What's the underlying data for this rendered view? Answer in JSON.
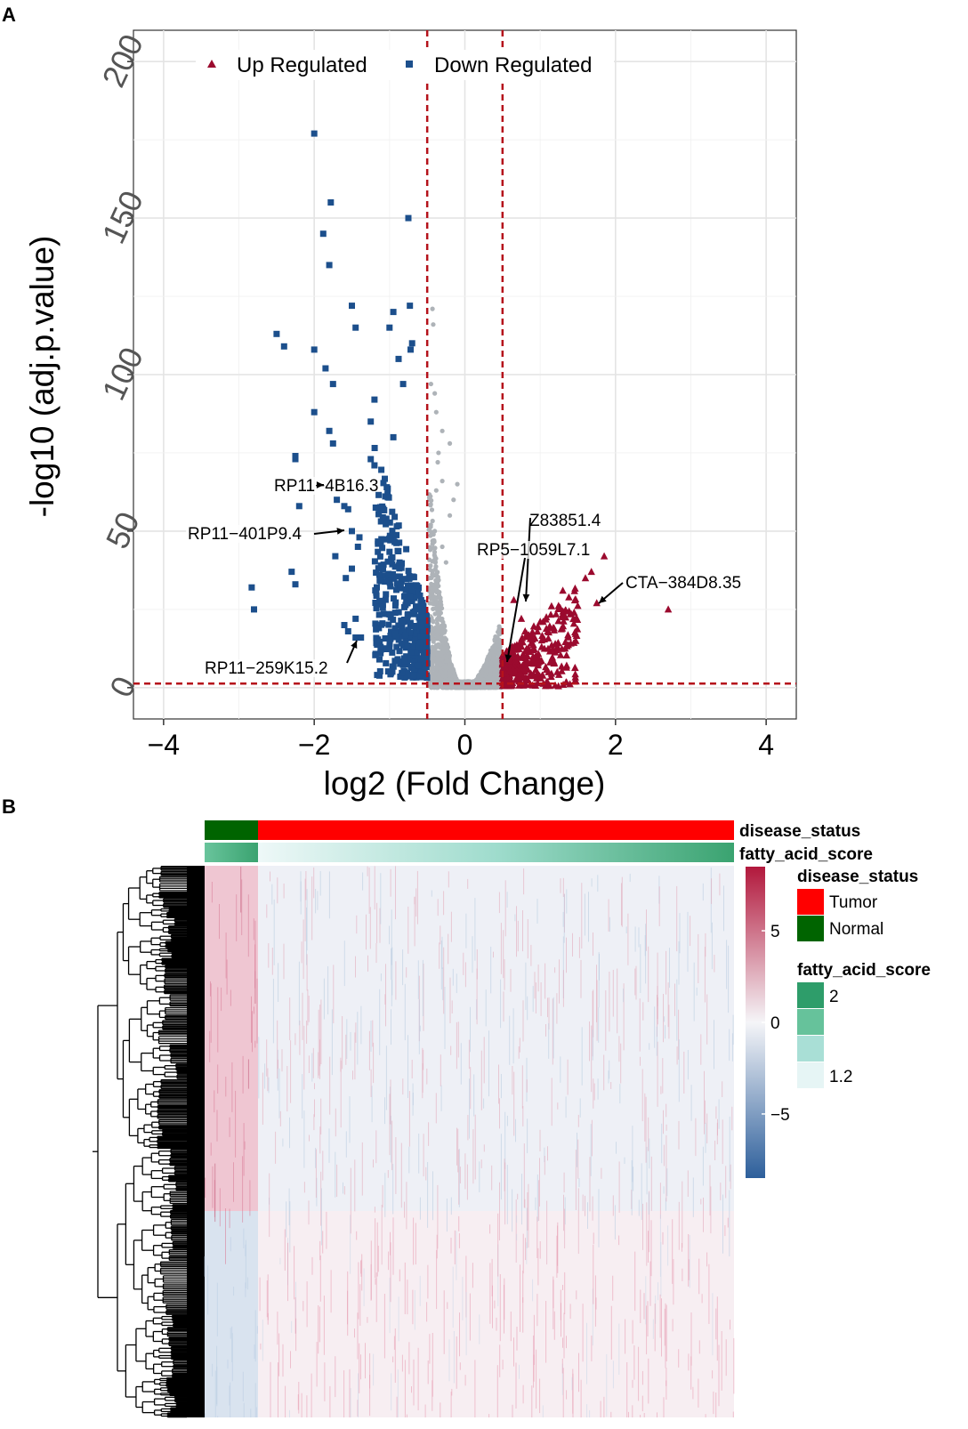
{
  "panels": {
    "a": {
      "letter": "A"
    },
    "b": {
      "letter": "B"
    }
  },
  "chart_data": [
    {
      "type": "scatter",
      "name": "volcano-plot",
      "xlabel": "log2 (Fold Change)",
      "ylabel": "-log10 (adj.p.value)",
      "xlim": [
        -4.4,
        4.4
      ],
      "ylim": [
        -10,
        210
      ],
      "xticks": [
        -4,
        -2,
        0,
        2,
        4
      ],
      "xtick_labels": [
        "−4",
        "−2",
        "0",
        "2",
        "4"
      ],
      "yticks": [
        0,
        50,
        100,
        150,
        200
      ],
      "ytick_labels": [
        "0",
        "50",
        "100",
        "150",
        "200"
      ],
      "fc_threshold": 0.5,
      "p_threshold": 1.3,
      "legend": [
        {
          "name": "Up Regulated",
          "color": "#9b0a2e",
          "marker": "triangle"
        },
        {
          "name": "Down Regulated",
          "color": "#1c4f8c",
          "marker": "square"
        }
      ],
      "colors": {
        "up": "#9b0a2e",
        "down": "#1c4f8c",
        "ns": "#aeb3b8",
        "threshold": "#b5121b"
      },
      "series": [
        {
          "name": "Down Regulated",
          "points": [
            [
              -2.0,
              177
            ],
            [
              -1.78,
              155
            ],
            [
              -1.88,
              145
            ],
            [
              -0.75,
              150
            ],
            [
              -1.8,
              135
            ],
            [
              -2.5,
              113
            ],
            [
              -2.4,
              109
            ],
            [
              -2.0,
              108
            ],
            [
              -1.5,
              122
            ],
            [
              -1.45,
              115
            ],
            [
              -0.95,
              120
            ],
            [
              -0.73,
              122
            ],
            [
              -1.0,
              115
            ],
            [
              -0.7,
              110
            ],
            [
              -0.72,
              108
            ],
            [
              -1.85,
              102
            ],
            [
              -1.75,
              97
            ],
            [
              -0.88,
              105
            ],
            [
              -0.82,
              97
            ],
            [
              -2.0,
              88
            ],
            [
              -1.2,
              92
            ],
            [
              -1.25,
              85
            ],
            [
              -1.8,
              82
            ],
            [
              -1.75,
              78
            ],
            [
              -0.95,
              80
            ],
            [
              -2.25,
              74
            ],
            [
              -2.25,
              73
            ],
            [
              -1.25,
              73
            ],
            [
              -1.2,
              71
            ],
            [
              -2.2,
              58
            ],
            [
              -2.3,
              37
            ],
            [
              -2.25,
              33
            ],
            [
              -2.83,
              32
            ],
            [
              -2.8,
              25
            ],
            [
              -1.7,
              60
            ],
            [
              -1.6,
              58
            ],
            [
              -1.55,
              57
            ],
            [
              -1.5,
              50
            ],
            [
              -1.4,
              48
            ],
            [
              -1.42,
              45
            ],
            [
              -1.72,
              42
            ],
            [
              -1.58,
              35
            ],
            [
              -1.5,
              38
            ],
            [
              -1.45,
              22
            ],
            [
              -1.6,
              20
            ],
            [
              -1.55,
              18
            ],
            [
              -1.45,
              16
            ],
            [
              -1.38,
              16
            ],
            [
              -1.12,
              11
            ],
            [
              -1.0,
              13
            ]
          ]
        },
        {
          "name": "Up Regulated",
          "points": [
            [
              1.85,
              42
            ],
            [
              1.68,
              37
            ],
            [
              1.6,
              35
            ],
            [
              2.7,
              25
            ],
            [
              1.75,
              27
            ],
            [
              1.3,
              31
            ],
            [
              1.15,
              26
            ],
            [
              1.45,
              24
            ],
            [
              1.1,
              18
            ],
            [
              1.2,
              14
            ],
            [
              0.65,
              28
            ],
            [
              0.75,
              22
            ],
            [
              0.8,
              18
            ],
            [
              0.9,
              12
            ]
          ]
        },
        {
          "name": "Not Significant",
          "points": [
            [
              -0.43,
              121
            ],
            [
              -0.42,
              116
            ],
            [
              -0.45,
              97
            ],
            [
              -0.4,
              94
            ],
            [
              -0.38,
              88
            ],
            [
              -0.3,
              82
            ],
            [
              -0.2,
              78
            ],
            [
              -0.35,
              75
            ],
            [
              -0.36,
              72
            ],
            [
              -0.3,
              66
            ],
            [
              -0.1,
              65
            ],
            [
              -0.15,
              60
            ],
            [
              -0.2,
              55
            ],
            [
              -0.38,
              63
            ],
            [
              -0.4,
              50
            ],
            [
              -0.3,
              45
            ],
            [
              -0.25,
              40
            ]
          ]
        }
      ],
      "annotations": [
        {
          "label": "RP11−4B16.3",
          "x": -1.8,
          "y": 66
        },
        {
          "label": "RP11−401P9.4",
          "x": -1.55,
          "y": 51
        },
        {
          "label": "RP11−259K15.2",
          "x": -1.45,
          "y": 17
        },
        {
          "label": "Z83851.4",
          "x": 0.88,
          "y": 27
        },
        {
          "label": "RP5−1059L7.1",
          "x": 0.58,
          "y": 8
        },
        {
          "label": "CTA−384D8.35",
          "x": 1.75,
          "y": 28
        }
      ]
    },
    {
      "type": "heatmap",
      "name": "expression-heatmap",
      "annotation_bars": [
        {
          "name": "disease_status",
          "label": "disease_status"
        },
        {
          "name": "fatty_acid_score",
          "label": "fatty_acid_score"
        }
      ],
      "groups": [
        {
          "name": "Normal",
          "color": "#006400",
          "fraction": 0.104
        },
        {
          "name": "Tumor",
          "color": "#ff0000",
          "fraction": 0.896
        }
      ],
      "colorbar": {
        "min": -8.5,
        "max": 8.5,
        "ticks": [
          5,
          0,
          -5
        ],
        "tick_labels": [
          "5",
          "0",
          "−5"
        ],
        "low_color": "#2d5f9b",
        "mid_color": "#f5f5f8",
        "high_color": "#b2183c"
      },
      "legend_disease": {
        "title": "disease_status",
        "items": [
          {
            "label": "Tumor",
            "color": "#ff0000"
          },
          {
            "label": "Normal",
            "color": "#006400"
          }
        ]
      },
      "legend_score": {
        "title": "fatty_acid_score",
        "swatches": [
          "#2e9d6a",
          "#66c29b",
          "#a9dfd6",
          "#e6f5f5"
        ],
        "labels": [
          "2",
          "1.2"
        ]
      }
    }
  ]
}
